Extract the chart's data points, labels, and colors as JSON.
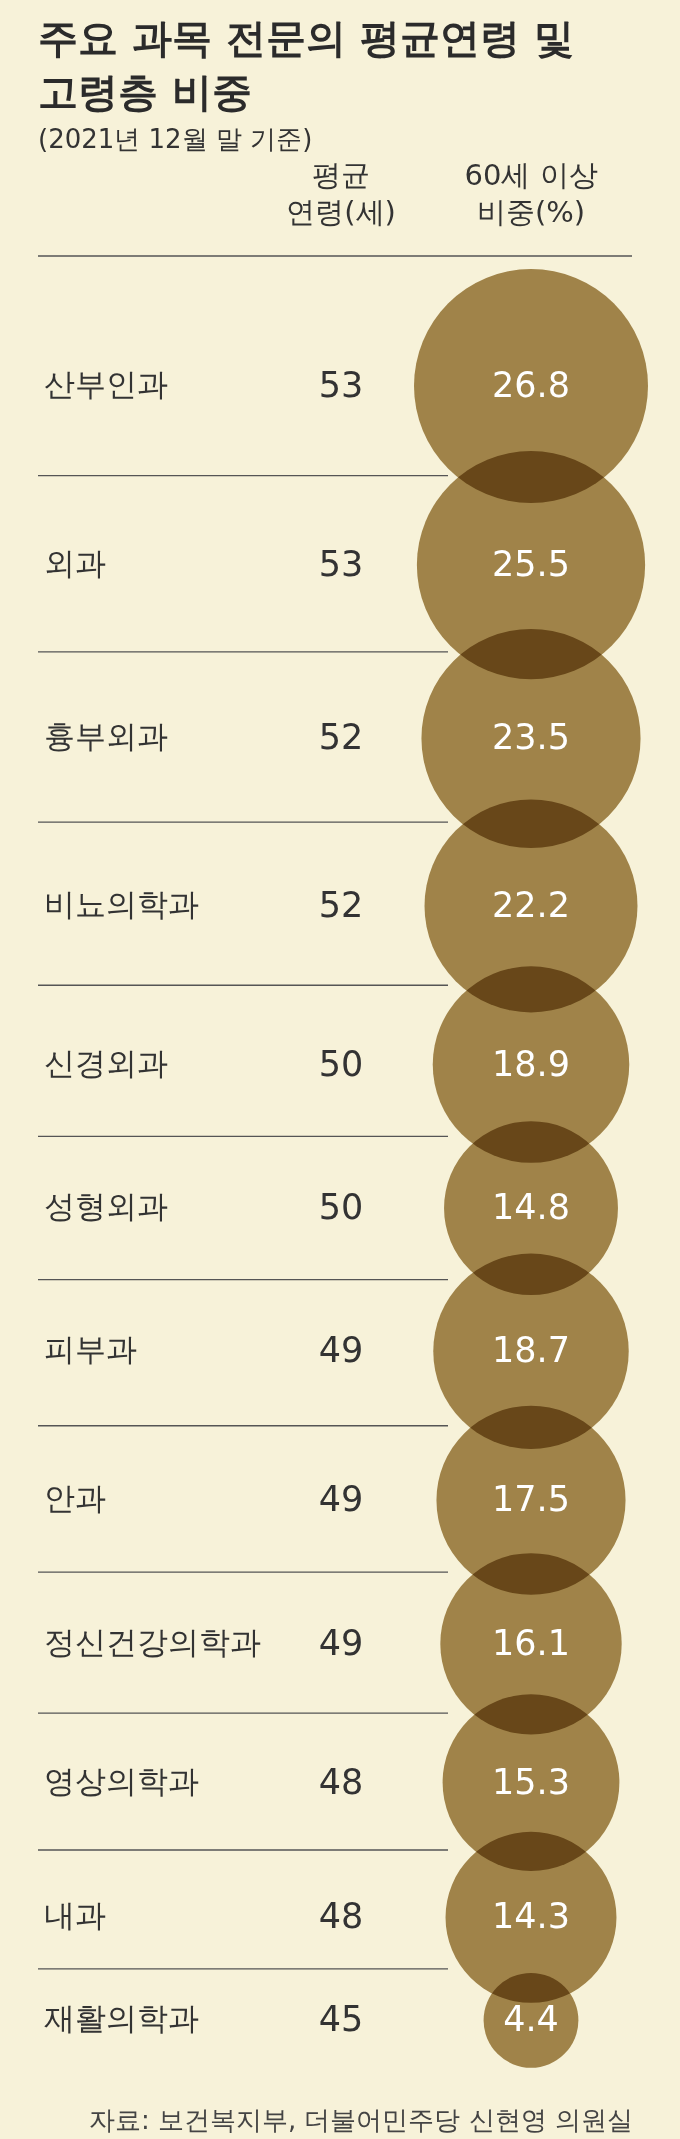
{
  "chart_data": {
    "type": "other",
    "title": "주요 과목 전문의 평균연령 및 고령층 비중",
    "subtitle": "(2021년 12월 말 기준)",
    "categories": [
      "산부인과",
      "외과",
      "흉부외과",
      "비뇨의학과",
      "신경외과",
      "성형외과",
      "피부과",
      "안과",
      "정신건강의학과",
      "영상의학과",
      "내과",
      "재활의학과"
    ],
    "series": [
      {
        "name": "평균 연령(세)",
        "color": "#333333",
        "values": [
          53,
          53,
          52,
          52,
          50,
          50,
          49,
          49,
          49,
          48,
          48,
          45
        ]
      },
      {
        "name": "60세 이상 비중(%)",
        "color": "#a58a55",
        "marker": "circle",
        "values": [
          26.8,
          25.5,
          23.5,
          22.2,
          18.9,
          14.8,
          18.7,
          17.5,
          16.1,
          15.3,
          14.3,
          4.4
        ]
      }
    ],
    "data_labels": true,
    "annotations": [
      "자료: 보건복지부, 더불어민주당 신현영 의원실"
    ]
  }
}
